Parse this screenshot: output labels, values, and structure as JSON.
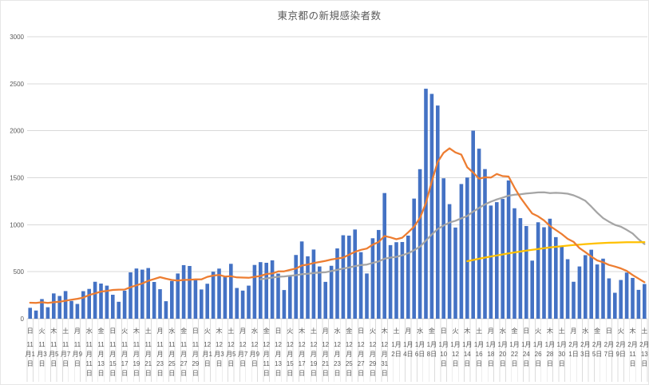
{
  "page": {
    "title": "東京都の新規感染者数"
  },
  "chart_data": {
    "type": "bar",
    "subtype": "combo-bar-with-line-overlays",
    "title": "東京都の新規感染者数",
    "legend": "none",
    "background": "#FFFFFF",
    "colors": {
      "grid": "#D9D9D9",
      "axis_line": "#C9C9C9",
      "tick_text": "#595959",
      "category_separator": "#DCDCDC"
    },
    "y_axis": {
      "min": 0,
      "max": 3000,
      "tick_interval": 500,
      "gridlines": true,
      "tick_labels": [
        "0",
        "500",
        "1000",
        "1500",
        "2000",
        "2500",
        "3000"
      ]
    },
    "x_axis": {
      "label_interval_days": 2,
      "tick_labels": [
        {
          "dow": "日",
          "date": "11月1日"
        },
        {
          "dow": "火",
          "date": "11月3日"
        },
        {
          "dow": "木",
          "date": "11月5日"
        },
        {
          "dow": "土",
          "date": "11月7日"
        },
        {
          "dow": "月",
          "date": "11月9日"
        },
        {
          "dow": "水",
          "date": "11月11日"
        },
        {
          "dow": "金",
          "date": "11月13日"
        },
        {
          "dow": "日",
          "date": "11月15日"
        },
        {
          "dow": "火",
          "date": "11月17日"
        },
        {
          "dow": "木",
          "date": "11月19日"
        },
        {
          "dow": "土",
          "date": "11月21日"
        },
        {
          "dow": "月",
          "date": "11月23日"
        },
        {
          "dow": "水",
          "date": "11月25日"
        },
        {
          "dow": "金",
          "date": "11月27日"
        },
        {
          "dow": "日",
          "date": "11月29日"
        },
        {
          "dow": "火",
          "date": "12月1日"
        },
        {
          "dow": "木",
          "date": "12月3日"
        },
        {
          "dow": "土",
          "date": "12月5日"
        },
        {
          "dow": "月",
          "date": "12月7日"
        },
        {
          "dow": "水",
          "date": "12月9日"
        },
        {
          "dow": "金",
          "date": "12月11日"
        },
        {
          "dow": "日",
          "date": "12月13日"
        },
        {
          "dow": "火",
          "date": "12月15日"
        },
        {
          "dow": "木",
          "date": "12月17日"
        },
        {
          "dow": "土",
          "date": "12月19日"
        },
        {
          "dow": "月",
          "date": "12月21日"
        },
        {
          "dow": "水",
          "date": "12月23日"
        },
        {
          "dow": "金",
          "date": "12月25日"
        },
        {
          "dow": "日",
          "date": "12月27日"
        },
        {
          "dow": "火",
          "date": "12月29日"
        },
        {
          "dow": "木",
          "date": "12月31日"
        },
        {
          "dow": "土",
          "date": "1月2日"
        },
        {
          "dow": "月",
          "date": "1月4日"
        },
        {
          "dow": "水",
          "date": "1月6日"
        },
        {
          "dow": "金",
          "date": "1月8日"
        },
        {
          "dow": "日",
          "date": "1月10日"
        },
        {
          "dow": "火",
          "date": "1月12日"
        },
        {
          "dow": "木",
          "date": "1月14日"
        },
        {
          "dow": "土",
          "date": "1月16日"
        },
        {
          "dow": "月",
          "date": "1月18日"
        },
        {
          "dow": "水",
          "date": "1月20日"
        },
        {
          "dow": "金",
          "date": "1月22日"
        },
        {
          "dow": "日",
          "date": "1月24日"
        },
        {
          "dow": "火",
          "date": "1月26日"
        },
        {
          "dow": "木",
          "date": "1月28日"
        },
        {
          "dow": "土",
          "date": "1月30日"
        },
        {
          "dow": "月",
          "date": "2月1日"
        },
        {
          "dow": "水",
          "date": "2月3日"
        },
        {
          "dow": "金",
          "date": "2月5日"
        },
        {
          "dow": "日",
          "date": "2月7日"
        },
        {
          "dow": "火",
          "date": "2月9日"
        },
        {
          "dow": "木",
          "date": "2月11日"
        },
        {
          "dow": "土",
          "date": "2月13日"
        }
      ]
    },
    "series": [
      {
        "name": "blue-bars-daily-new-cases",
        "type": "bar",
        "color": "#4472C4",
        "start_index": 0,
        "values": [
          116,
          87,
          209,
          122,
          269,
          242,
          294,
          189,
          157,
          293,
          317,
          393,
          374,
          352,
          255,
          180,
          298,
          493,
          534,
          522,
          539,
          391,
          314,
          186,
          401,
          481,
          570,
          561,
          418,
          311,
          372,
          500,
          533,
          449,
          584,
          327,
          299,
          352,
          572,
          602,
          595,
          621,
          480,
          305,
          460,
          678,
          822,
          664,
          736,
          556,
          392,
          563,
          748,
          888,
          884,
          949,
          708,
          481,
          856,
          944,
          1337,
          783,
          814,
          816,
          884,
          1278,
          1591,
          2447,
          2392,
          2268,
          1494,
          1219,
          970,
          1433,
          1502,
          2001,
          1809,
          1592,
          1204,
          1240,
          1274,
          1471,
          1175,
          1070,
          986,
          618,
          1026,
          973,
          1064,
          868,
          769,
          633,
          393,
          556,
          676,
          734,
          577,
          639,
          429,
          276,
          412,
          491,
          434,
          307,
          369
        ]
      },
      {
        "name": "gray-line",
        "type": "line",
        "color": "#A5A5A5",
        "start_index": 39,
        "values": [
          420,
          428,
          438,
          446,
          450,
          456,
          463,
          473,
          478,
          485,
          491,
          494,
          507,
          520,
          534,
          545,
          559,
          570,
          576,
          593,
          609,
          638,
          650,
          658,
          675,
          696,
          729,
          766,
          831,
          896,
          954,
          991,
          1023,
          1042,
          1068,
          1093,
          1140,
          1179,
          1216,
          1245,
          1269,
          1288,
          1309,
          1319,
          1323,
          1333,
          1338,
          1344,
          1345,
          1336,
          1339,
          1337,
          1330,
          1313,
          1287,
          1254,
          1193,
          1128,
          1070,
          1032,
          999,
          979,
          945,
          907,
          846,
          795
        ]
      },
      {
        "name": "yellow-line",
        "type": "line",
        "color": "#FFC000",
        "start_index": 74,
        "values": [
          612,
          625,
          638,
          650,
          662,
          673,
          684,
          695,
          705,
          715,
          724,
          733,
          742,
          750,
          758,
          765,
          772,
          778,
          784,
          789,
          794,
          798,
          802,
          805,
          808,
          810,
          812,
          813,
          814,
          814,
          815
        ]
      },
      {
        "name": "orange-line",
        "type": "line",
        "color": "#ED7D31",
        "start_index": 0,
        "values": [
          170,
          167,
          175,
          168,
          175,
          180,
          191,
          202,
          212,
          224,
          252,
          269,
          288,
          296,
          306,
          309,
          310,
          335,
          355,
          376,
          403,
          422,
          442,
          426,
          412,
          405,
          412,
          415,
          419,
          418,
          445,
          459,
          466,
          449,
          452,
          439,
          438,
          435,
          445,
          455,
          476,
          481,
          503,
          504,
          519,
          534,
          566,
          576,
          592,
          603,
          615,
          630,
          640,
          650,
          681,
          711,
          733,
          746,
          788,
          816,
          880,
          865,
          846,
          862,
          919,
          979,
          1072,
          1230,
          1460,
          1668,
          1765,
          1813,
          1769,
          1746,
          1611,
          1555,
          1490,
          1504,
          1502,
          1540,
          1517,
          1513,
          1395,
          1289,
          1203,
          1119,
          1089,
          1046,
          987,
          944,
          901,
          850,
          818,
          751,
          708,
          661,
          620,
          601,
          572,
          555,
          535,
          508,
          465,
          427,
          388
        ]
      }
    ]
  }
}
